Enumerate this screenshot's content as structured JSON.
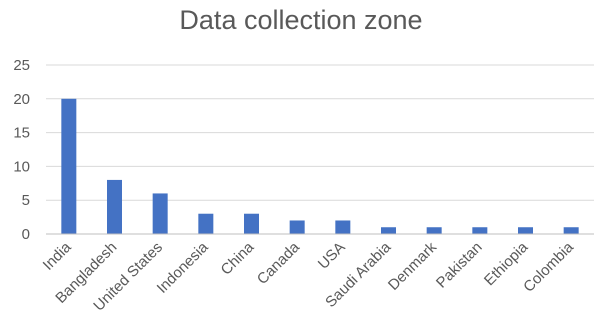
{
  "chart_data": {
    "type": "bar",
    "title": "Data collection zone",
    "categories": [
      "India",
      "Bangladesh",
      "United States",
      "Indonesia",
      "China",
      "Canada",
      "USA",
      "Saudi Arabia",
      "Denmark",
      "Pakistan",
      "Ethiopia",
      "Colombia"
    ],
    "values": [
      20,
      8,
      6,
      3,
      3,
      2,
      2,
      1,
      1,
      1,
      1,
      1
    ],
    "xlabel": "",
    "ylabel": "",
    "ylim": [
      0,
      25
    ],
    "yticks": [
      0,
      5,
      10,
      15,
      20,
      25
    ],
    "grid": true,
    "legend": "none",
    "bar_color": "#4472C4"
  }
}
